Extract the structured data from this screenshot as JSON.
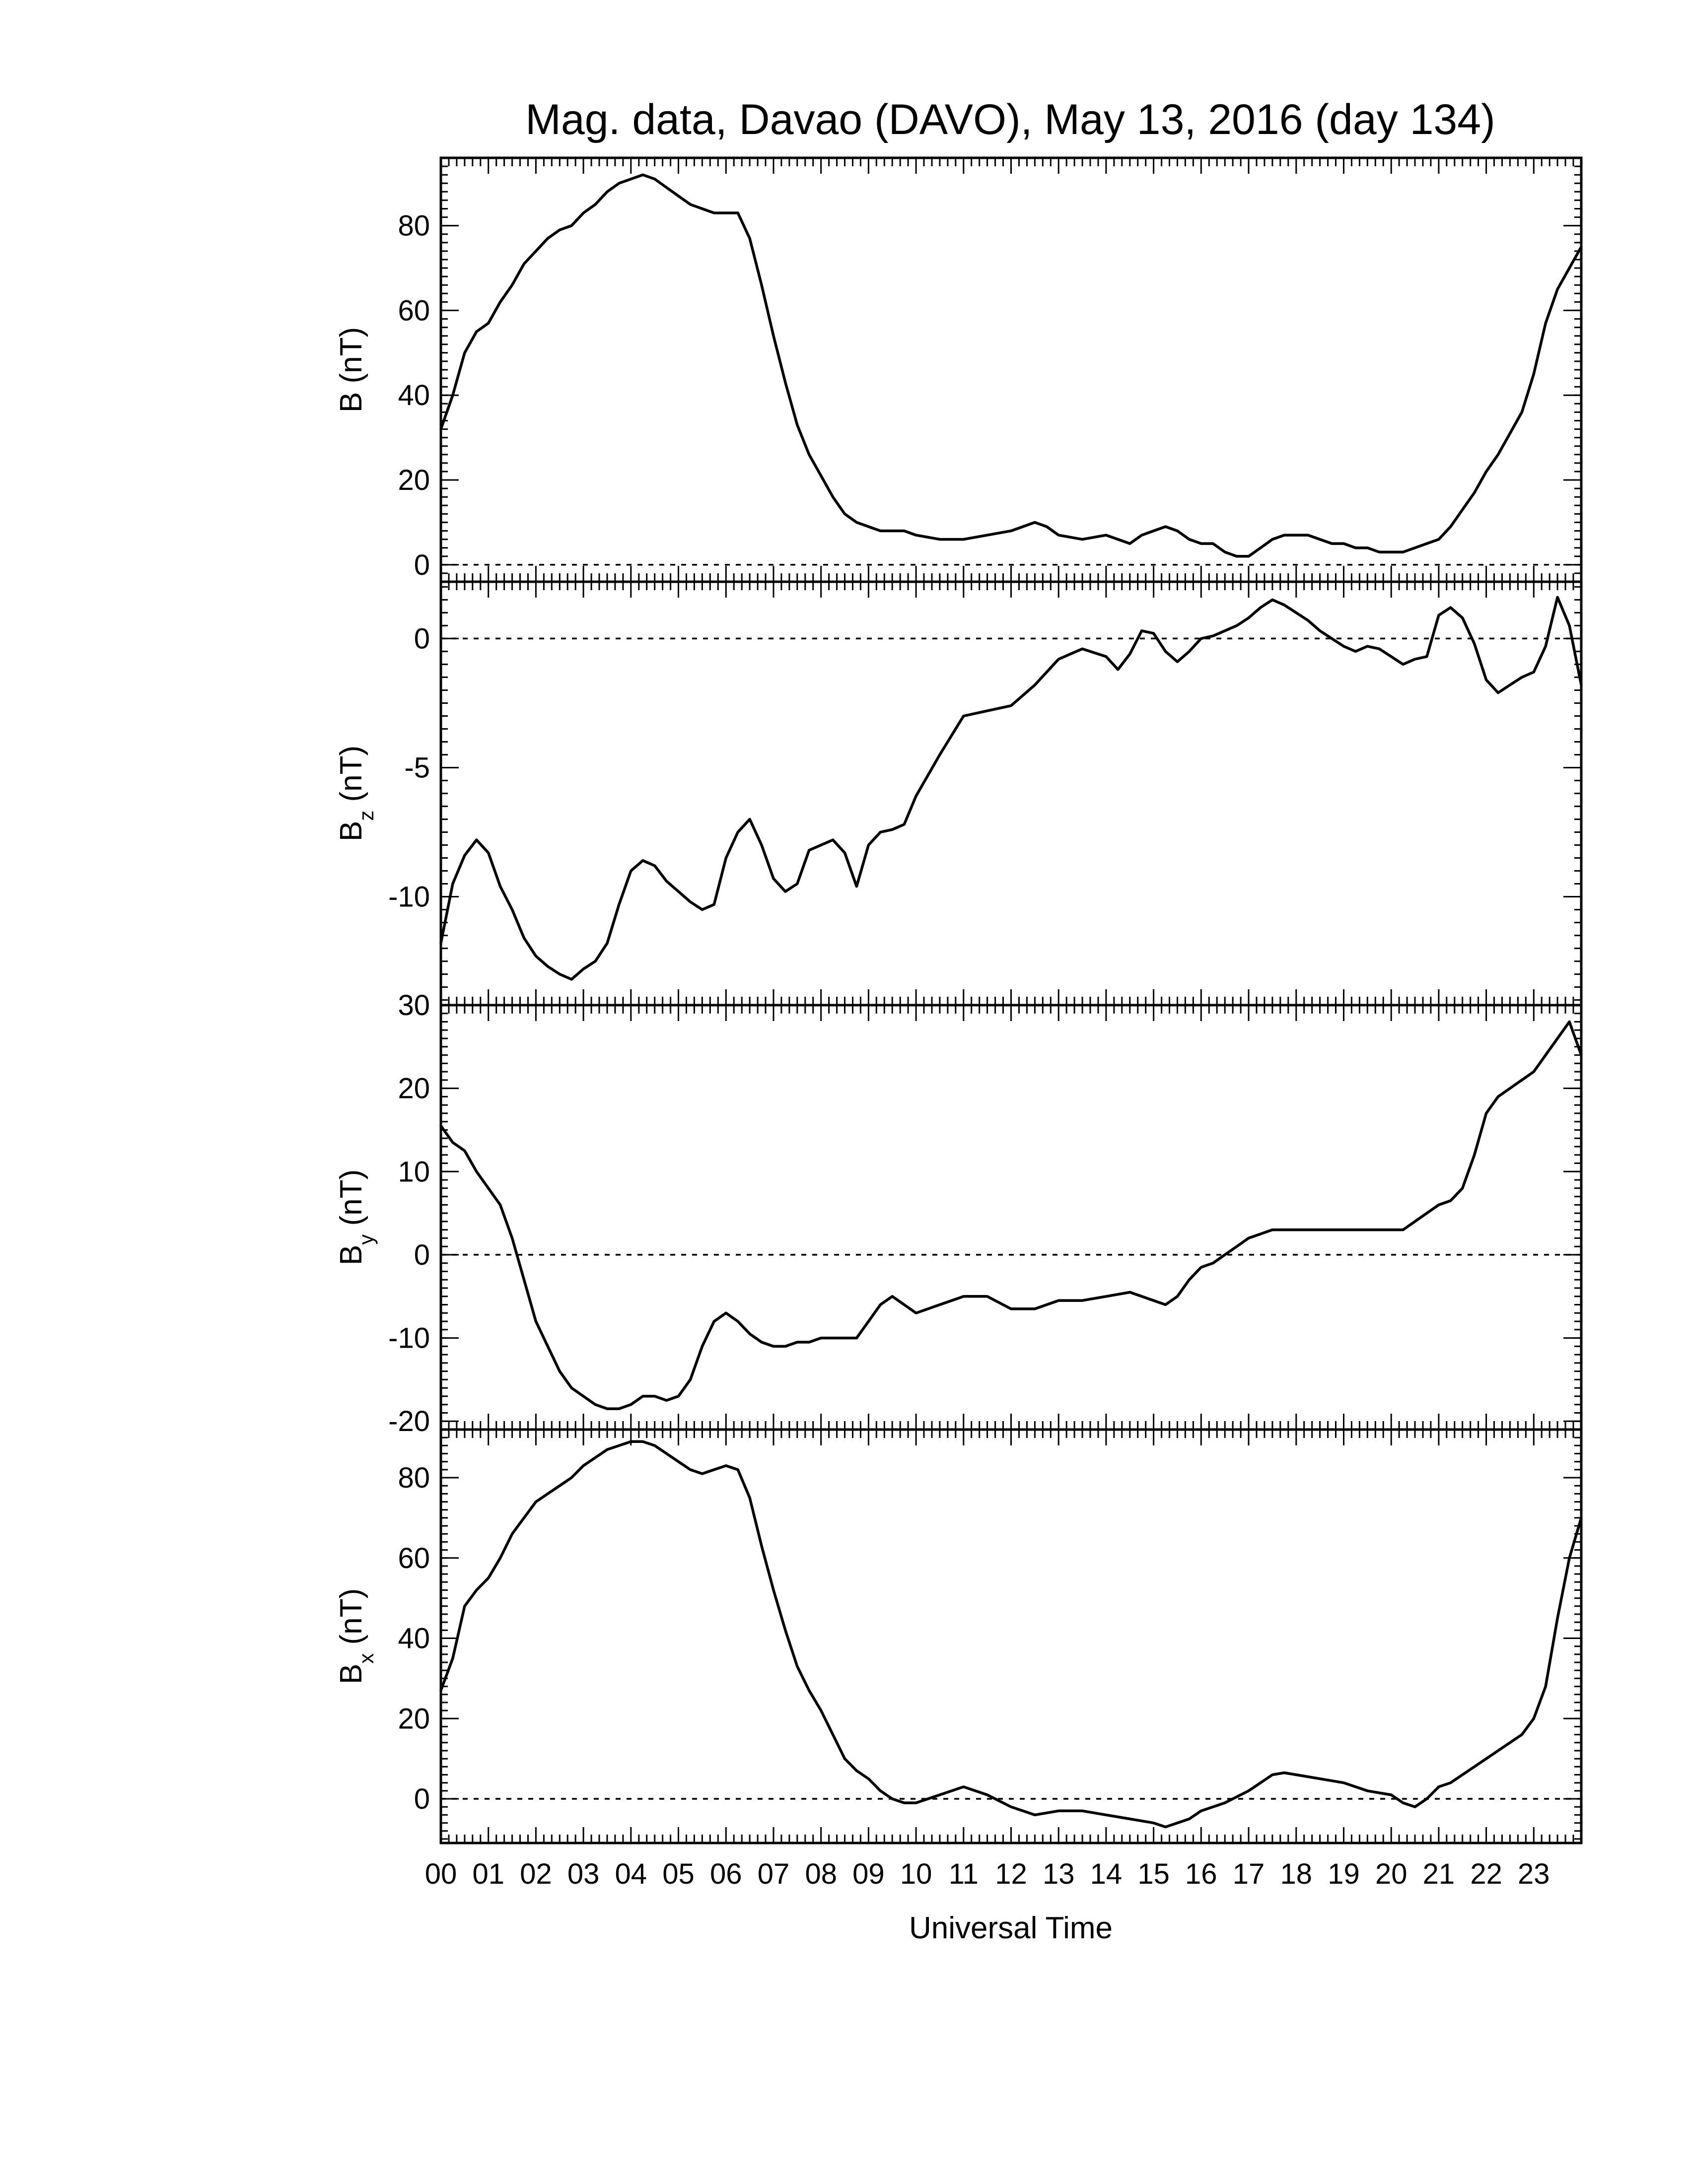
{
  "chart_data": {
    "type": "line",
    "title": "Mag. data, Davao (DAVO), May 13, 2016 (day 134)",
    "xlabel": "Universal Time",
    "x_ticks": [
      "00",
      "01",
      "02",
      "03",
      "04",
      "05",
      "06",
      "07",
      "08",
      "09",
      "10",
      "11",
      "12",
      "13",
      "14",
      "15",
      "16",
      "17",
      "18",
      "19",
      "20",
      "21",
      "22",
      "23"
    ],
    "xlim": [
      0,
      24
    ],
    "grid": false,
    "panels": [
      {
        "key": "b",
        "ylabel_main": "B",
        "ylabel_sub": "",
        "ylabel_unit": " (nT)",
        "ylim": [
          -4,
          96
        ],
        "yticks": [
          0,
          20,
          40,
          60,
          80
        ],
        "zero_line": true,
        "series": {
          "x": [
            0,
            0.25,
            0.5,
            0.75,
            1,
            1.25,
            1.5,
            1.75,
            2,
            2.25,
            2.5,
            2.75,
            3,
            3.25,
            3.5,
            3.75,
            4,
            4.25,
            4.5,
            4.75,
            5,
            5.25,
            5.5,
            5.75,
            6,
            6.25,
            6.5,
            6.75,
            7,
            7.25,
            7.5,
            7.75,
            8,
            8.25,
            8.5,
            8.75,
            9,
            9.25,
            9.5,
            9.75,
            10,
            10.5,
            11,
            11.5,
            12,
            12.25,
            12.5,
            12.75,
            13,
            13.5,
            14,
            14.25,
            14.5,
            14.75,
            15,
            15.25,
            15.5,
            15.75,
            16,
            16.25,
            16.5,
            16.75,
            17,
            17.25,
            17.5,
            17.75,
            18,
            18.25,
            18.5,
            18.75,
            19,
            19.25,
            19.5,
            19.75,
            20,
            20.25,
            20.5,
            20.75,
            21,
            21.25,
            21.5,
            21.75,
            22,
            22.25,
            22.5,
            22.75,
            23,
            23.25,
            23.5,
            23.75,
            24
          ],
          "y": [
            32,
            40,
            50,
            55,
            57,
            62,
            66,
            71,
            74,
            77,
            79,
            80,
            83,
            85,
            88,
            90,
            91,
            92,
            91,
            89,
            87,
            85,
            84,
            83,
            83,
            83,
            77,
            66,
            54,
            43,
            33,
            26,
            21,
            16,
            12,
            10,
            9,
            8,
            8,
            8,
            7,
            6,
            6,
            7,
            8,
            9,
            10,
            9,
            7,
            6,
            7,
            6,
            5,
            7,
            8,
            9,
            8,
            6,
            5,
            5,
            3,
            2,
            2,
            4,
            6,
            7,
            7,
            7,
            6,
            5,
            5,
            4,
            4,
            3,
            3,
            3,
            4,
            5,
            6,
            9,
            13,
            17,
            22,
            26,
            31,
            36,
            45,
            57,
            65,
            70,
            75
          ]
        }
      },
      {
        "key": "bz",
        "ylabel_main": "B",
        "ylabel_sub": "z",
        "ylabel_unit": " (nT)",
        "ylim": [
          -14.2,
          2.2
        ],
        "yticks": [
          -10,
          -5,
          0
        ],
        "zero_line": true,
        "series": {
          "x": [
            0,
            0.25,
            0.5,
            0.75,
            1,
            1.25,
            1.5,
            1.75,
            2,
            2.25,
            2.5,
            2.75,
            3,
            3.25,
            3.5,
            3.75,
            4,
            4.25,
            4.5,
            4.75,
            5,
            5.25,
            5.5,
            5.75,
            6,
            6.25,
            6.5,
            6.75,
            7,
            7.25,
            7.5,
            7.75,
            8,
            8.25,
            8.5,
            8.75,
            9,
            9.25,
            9.5,
            9.75,
            10,
            10.5,
            11,
            11.5,
            12,
            12.5,
            13,
            13.5,
            14,
            14.25,
            14.5,
            14.75,
            15,
            15.25,
            15.5,
            15.75,
            16,
            16.25,
            16.5,
            16.75,
            17,
            17.25,
            17.5,
            17.75,
            18,
            18.25,
            18.5,
            18.75,
            19,
            19.25,
            19.5,
            19.75,
            20,
            20.25,
            20.5,
            20.75,
            21,
            21.25,
            21.5,
            21.75,
            22,
            22.25,
            22.5,
            22.75,
            23,
            23.25,
            23.5,
            23.75,
            24
          ],
          "y": [
            -11.8,
            -9.5,
            -8.4,
            -7.8,
            -8.3,
            -9.6,
            -10.5,
            -11.6,
            -12.3,
            -12.7,
            -13.0,
            -13.2,
            -12.8,
            -12.5,
            -11.8,
            -10.3,
            -9.0,
            -8.6,
            -8.8,
            -9.4,
            -9.8,
            -10.2,
            -10.5,
            -10.3,
            -8.5,
            -7.5,
            -7.0,
            -8.0,
            -9.3,
            -9.8,
            -9.5,
            -8.2,
            -8.0,
            -7.8,
            -8.3,
            -9.6,
            -8.0,
            -7.5,
            -7.4,
            -7.2,
            -6.1,
            -4.5,
            -3.0,
            -2.8,
            -2.6,
            -1.8,
            -0.8,
            -0.4,
            -0.7,
            -1.2,
            -0.6,
            0.3,
            0.2,
            -0.5,
            -0.9,
            -0.5,
            0.0,
            0.1,
            0.3,
            0.5,
            0.8,
            1.2,
            1.5,
            1.3,
            1.0,
            0.7,
            0.3,
            0.0,
            -0.3,
            -0.5,
            -0.3,
            -0.4,
            -0.7,
            -1.0,
            -0.8,
            -0.7,
            0.9,
            1.2,
            0.8,
            -0.2,
            -1.6,
            -2.1,
            -1.8,
            -1.5,
            -1.3,
            -0.3,
            1.6,
            0.5,
            -1.8
          ]
        }
      },
      {
        "key": "by",
        "ylabel_main": "B",
        "ylabel_sub": "y",
        "ylabel_unit": " (nT)",
        "ylim": [
          -21,
          30
        ],
        "yticks": [
          -20,
          -10,
          0,
          10,
          20,
          30
        ],
        "zero_line": true,
        "series": {
          "x": [
            0,
            0.25,
            0.5,
            0.75,
            1,
            1.25,
            1.5,
            1.75,
            2,
            2.25,
            2.5,
            2.75,
            3,
            3.25,
            3.5,
            3.75,
            4,
            4.25,
            4.5,
            4.75,
            5,
            5.25,
            5.5,
            5.75,
            6,
            6.25,
            6.5,
            6.75,
            7,
            7.25,
            7.5,
            7.75,
            8,
            8.25,
            8.5,
            8.75,
            9,
            9.25,
            9.5,
            9.75,
            10,
            10.5,
            11,
            11.5,
            12,
            12.5,
            13,
            13.5,
            14,
            14.5,
            15,
            15.25,
            15.5,
            15.75,
            16,
            16.25,
            16.5,
            16.75,
            17,
            17.5,
            18,
            18.5,
            19,
            19.5,
            20,
            20.25,
            20.5,
            20.75,
            21,
            21.25,
            21.5,
            21.75,
            22,
            22.25,
            22.5,
            22.75,
            23,
            23.25,
            23.5,
            23.75,
            24
          ],
          "y": [
            15.5,
            13.5,
            12.5,
            10,
            8,
            6,
            2,
            -3,
            -8,
            -11,
            -14,
            -16,
            -17,
            -18,
            -18.5,
            -18.5,
            -18,
            -17,
            -17,
            -17.5,
            -17,
            -15,
            -11,
            -8,
            -7,
            -8,
            -9.5,
            -10.5,
            -11,
            -11,
            -10.5,
            -10.5,
            -10,
            -10,
            -10,
            -10,
            -8,
            -6,
            -5,
            -6,
            -7,
            -6,
            -5,
            -5,
            -6.5,
            -6.5,
            -5.5,
            -5.5,
            -5,
            -4.5,
            -5.5,
            -6,
            -5,
            -3,
            -1.5,
            -1,
            0,
            1,
            2,
            3,
            3,
            3,
            3,
            3,
            3,
            3,
            4,
            5,
            6,
            6.5,
            8,
            12,
            17,
            19,
            20,
            21,
            22,
            24,
            26,
            28,
            24
          ]
        }
      },
      {
        "key": "bx",
        "ylabel_main": "B",
        "ylabel_sub": "x",
        "ylabel_unit": " (nT)",
        "ylim": [
          -11,
          92
        ],
        "yticks": [
          0,
          20,
          40,
          60,
          80
        ],
        "zero_line": true,
        "series": {
          "x": [
            0,
            0.25,
            0.5,
            0.75,
            1,
            1.25,
            1.5,
            1.75,
            2,
            2.25,
            2.5,
            2.75,
            3,
            3.25,
            3.5,
            3.75,
            4,
            4.25,
            4.5,
            4.75,
            5,
            5.25,
            5.5,
            5.75,
            6,
            6.25,
            6.5,
            6.75,
            7,
            7.25,
            7.5,
            7.75,
            8,
            8.25,
            8.5,
            8.75,
            9,
            9.25,
            9.5,
            9.75,
            10,
            10.5,
            11,
            11.5,
            12,
            12.5,
            13,
            13.5,
            14,
            14.5,
            15,
            15.25,
            15.5,
            15.75,
            16,
            16.5,
            17,
            17.25,
            17.5,
            17.75,
            18,
            18.5,
            19,
            19.5,
            20,
            20.25,
            20.5,
            20.75,
            21,
            21.25,
            21.5,
            21.75,
            22,
            22.25,
            22.5,
            22.75,
            23,
            23.25,
            23.5,
            23.75,
            24
          ],
          "y": [
            27,
            35,
            48,
            52,
            55,
            60,
            66,
            70,
            74,
            76,
            78,
            80,
            83,
            85,
            87,
            88,
            89,
            89,
            88,
            86,
            84,
            82,
            81,
            82,
            83,
            82,
            75,
            63,
            52,
            42,
            33,
            27,
            22,
            16,
            10,
            7,
            5,
            2,
            0,
            -1,
            -1,
            1,
            3,
            1,
            -2,
            -4,
            -3,
            -3,
            -4,
            -5,
            -6,
            -7,
            -6,
            -5,
            -3,
            -1,
            2,
            4,
            6,
            6.5,
            6,
            5,
            4,
            2,
            1,
            -1,
            -2,
            0,
            3,
            4,
            6,
            8,
            10,
            12,
            14,
            16,
            20,
            28,
            45,
            60,
            70
          ]
        }
      }
    ]
  }
}
